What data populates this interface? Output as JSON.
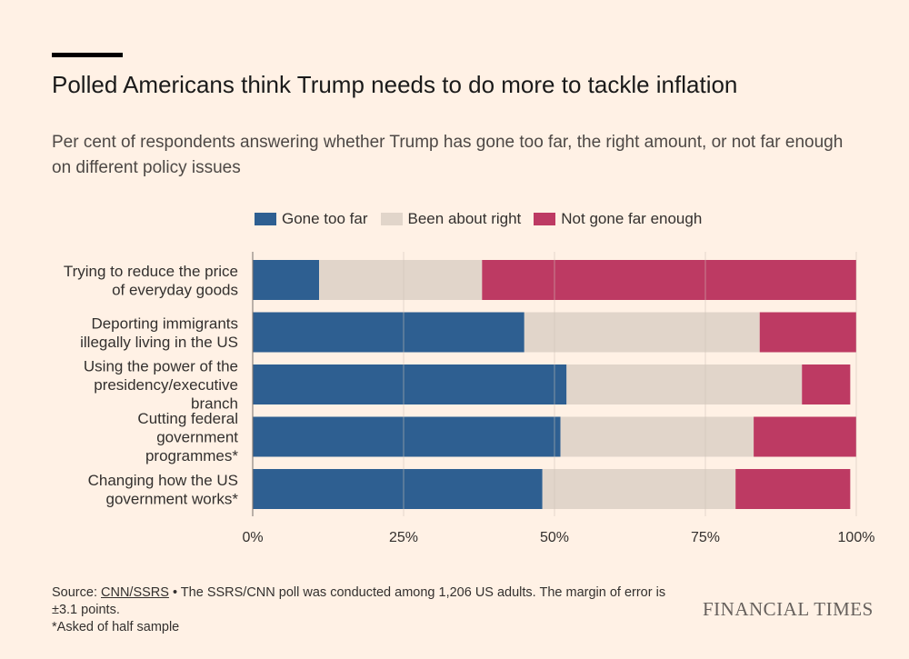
{
  "header": {
    "title": "Polled Americans think Trump needs to do more to tackle inflation",
    "subtitle": "Per cent of respondents answering whether Trump has gone too far, the right amount, or not far enough on different policy issues"
  },
  "chart_data": {
    "type": "bar",
    "orientation": "horizontal",
    "stacked": true,
    "categories": [
      [
        "Trying to reduce the price",
        "of everyday goods"
      ],
      [
        "Deporting immigrants",
        "illegally living in the US"
      ],
      [
        "Using the power of the",
        "presidency/executive",
        "branch"
      ],
      [
        "Cutting federal",
        "government",
        "programmes*"
      ],
      [
        "Changing how the US",
        "government works*"
      ]
    ],
    "series": [
      {
        "name": "Gone too far",
        "color": "#2e5f91",
        "values": [
          11,
          45,
          52,
          51,
          48
        ]
      },
      {
        "name": "Been about right",
        "color": "#e1d5ca",
        "values": [
          27,
          39,
          39,
          32,
          32
        ]
      },
      {
        "name": "Not gone far enough",
        "color": "#bd3a63",
        "values": [
          62,
          16,
          8,
          17,
          19
        ]
      }
    ],
    "xlim": [
      0,
      100
    ],
    "xticks": [
      0,
      25,
      50,
      75,
      100
    ],
    "xtick_labels": [
      "0%",
      "25%",
      "50%",
      "75%",
      "100%"
    ],
    "grid": true,
    "legend": "top"
  },
  "footer": {
    "source_label": "Source: ",
    "source_link": "CNN/SSRS",
    "source_text": " • The SSRS/CNN poll was conducted among 1,206 US adults. The margin of error is ±3.1 points.",
    "note": "*Asked of half sample"
  },
  "brand": {
    "logo_text": "FINANCIAL TIMES"
  }
}
